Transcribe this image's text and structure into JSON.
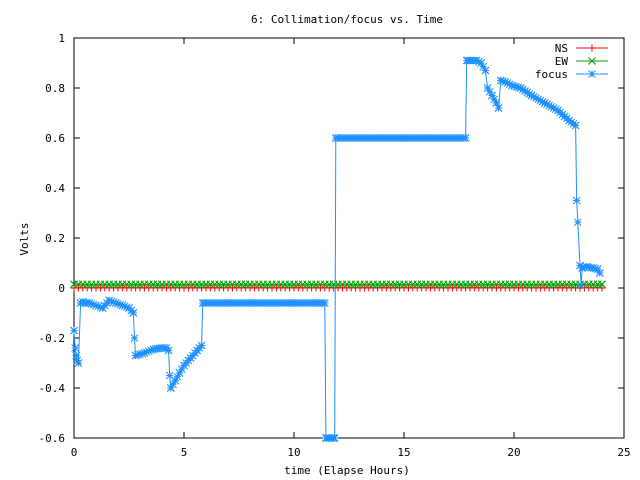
{
  "chart_data": {
    "type": "line",
    "title": "6: Collimation/focus vs. Time",
    "xlabel": "time (Elapse Hours)",
    "ylabel": "Volts",
    "xlim": [
      0,
      25
    ],
    "ylim": [
      -0.6,
      1
    ],
    "x_ticks": [
      0,
      5,
      10,
      15,
      20,
      25
    ],
    "x_tick_labels": [
      "0",
      "5",
      "10",
      "15",
      "20",
      "25"
    ],
    "y_ticks": [
      -0.6,
      -0.4,
      -0.2,
      0,
      0.2,
      0.4,
      0.6,
      0.8,
      1
    ],
    "y_tick_labels": [
      "-0.6",
      "-0.4",
      "-0.2",
      "0",
      "0.2",
      "0.4",
      "0.6",
      "0.8",
      "1"
    ],
    "grid": false,
    "legend_position": "top-right",
    "series": [
      {
        "name": "NS",
        "color": "#ff0000",
        "marker": "plus",
        "x": [
          0,
          24
        ],
        "y": [
          0,
          0
        ],
        "marker_step": 0.2
      },
      {
        "name": "EW",
        "color": "#00a000",
        "marker": "cross",
        "x": [
          0,
          24
        ],
        "y": [
          0.015,
          0.015
        ],
        "marker_step": 0.2
      },
      {
        "name": "focus",
        "color": "#1e90ff",
        "marker": "star",
        "x": [
          0.0,
          0.05,
          0.1,
          0.15,
          0.2,
          0.3,
          0.4,
          0.5,
          0.7,
          1.0,
          1.3,
          1.6,
          1.9,
          2.2,
          2.5,
          2.7,
          2.75,
          2.8,
          3.2,
          3.6,
          4.0,
          4.2,
          4.3,
          4.35,
          4.4,
          4.6,
          4.8,
          5.0,
          5.3,
          5.6,
          5.8,
          5.85,
          6.0,
          7.0,
          8.0,
          9.0,
          10.0,
          11.0,
          11.4,
          11.45,
          11.5,
          11.6,
          11.7,
          11.8,
          11.85,
          11.9,
          12.0,
          13.0,
          14.0,
          15.0,
          16.0,
          17.0,
          17.8,
          17.85,
          17.9,
          18.0,
          18.3,
          18.5,
          18.7,
          18.8,
          19.0,
          19.2,
          19.3,
          19.4,
          19.6,
          19.9,
          20.3,
          20.8,
          21.4,
          22.0,
          22.5,
          22.8,
          22.85,
          23.0,
          23.05,
          23.1,
          23.3,
          23.6,
          23.8,
          23.9
        ],
        "y": [
          -0.17,
          -0.24,
          -0.27,
          -0.29,
          -0.3,
          -0.06,
          -0.055,
          -0.06,
          -0.06,
          -0.07,
          -0.08,
          -0.05,
          -0.06,
          -0.07,
          -0.08,
          -0.1,
          -0.2,
          -0.27,
          -0.26,
          -0.245,
          -0.24,
          -0.24,
          -0.25,
          -0.35,
          -0.4,
          -0.37,
          -0.34,
          -0.31,
          -0.28,
          -0.25,
          -0.23,
          -0.06,
          -0.06,
          -0.06,
          -0.06,
          -0.06,
          -0.06,
          -0.06,
          -0.06,
          -0.6,
          -0.6,
          -0.6,
          -0.6,
          -0.6,
          -0.6,
          0.6,
          0.6,
          0.6,
          0.6,
          0.6,
          0.6,
          0.6,
          0.6,
          0.91,
          0.91,
          0.91,
          0.91,
          0.9,
          0.87,
          0.8,
          0.77,
          0.74,
          0.72,
          0.83,
          0.825,
          0.81,
          0.8,
          0.77,
          0.74,
          0.71,
          0.67,
          0.65,
          0.35,
          0.09,
          0.01,
          0.08,
          0.085,
          0.08,
          0.075,
          0.06
        ],
        "marker_step": 0.1
      }
    ]
  }
}
